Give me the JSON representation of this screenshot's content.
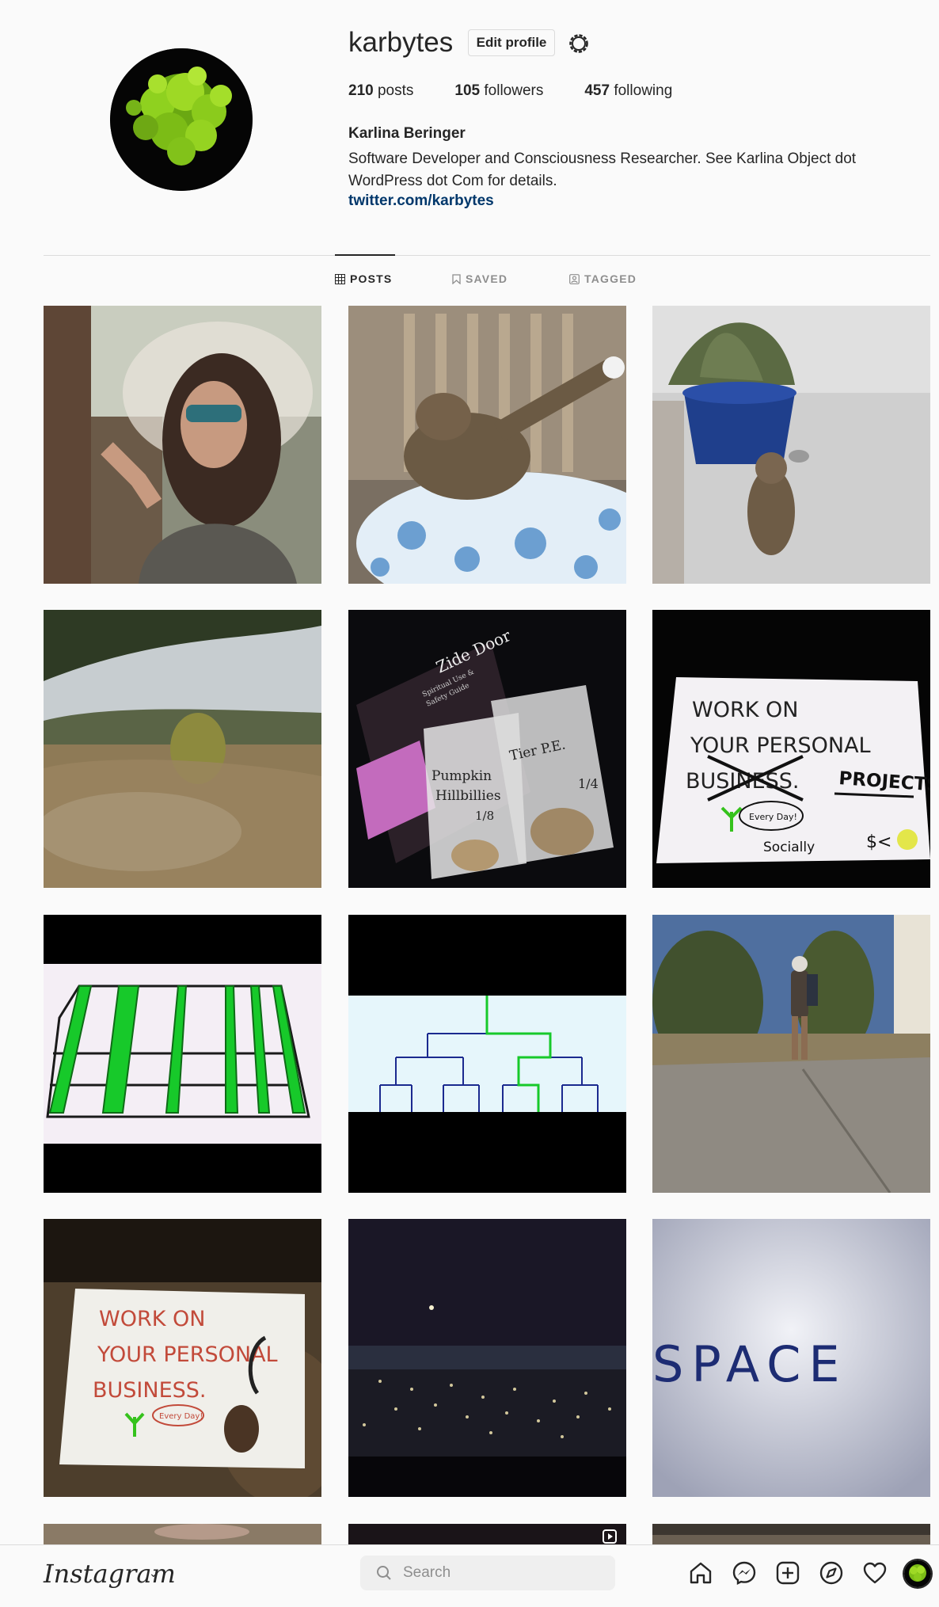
{
  "profile": {
    "username": "karbytes",
    "edit_label": "Edit profile",
    "posts_count": "210",
    "posts_label": " posts",
    "followers_count": "105",
    "followers_label": " followers",
    "following_count": "457",
    "following_label": " following",
    "full_name": "Karlina Beringer",
    "bio": "Software Developer and Consciousness Researcher. See Karlina Object dot WordPress dot Com for details.",
    "link": "twitter.com/karbytes"
  },
  "tabs": [
    {
      "label": "POSTS",
      "active": true
    },
    {
      "label": "SAVED",
      "active": false
    },
    {
      "label": "TAGGED",
      "active": false
    }
  ],
  "grid": {
    "tiles": [
      {
        "icon": "selfie-photo"
      },
      {
        "icon": "cat-on-cushion-photo"
      },
      {
        "icon": "cat-by-planter-photo"
      },
      {
        "icon": "hillside-landscape-photo"
      },
      {
        "icon": "mushroom-bags-photo"
      },
      {
        "icon": "work-on-projects-sign-photo"
      },
      {
        "icon": "green-grid-drawing-photo"
      },
      {
        "icon": "tree-diagram-drawing-photo"
      },
      {
        "icon": "hiker-on-path-photo"
      },
      {
        "icon": "work-on-business-sign-photo"
      },
      {
        "icon": "night-city-lights-photo"
      },
      {
        "icon": "space-word-photo"
      }
    ],
    "sign1_lines": [
      "WORK  ON",
      "YOUR  PERSONAL",
      "BUSINESS.",
      "PROJECTS",
      "Every Day!",
      "Socially",
      "$<"
    ],
    "sign2_lines": [
      "WORK  ON",
      "YOUR  PERSONAL",
      "BUSINESS.",
      "Every Day!"
    ],
    "bags_lines": [
      "Zide Door",
      "Spiritual Use &",
      "Safety Guide",
      "Pumpkin",
      "Hillbillies",
      "1/8",
      "Tier P.E.",
      "1/4"
    ],
    "space_word": "SPACE"
  },
  "bottom_nav": {
    "logo": "Instagram",
    "search_placeholder": "Search",
    "icons": [
      "home-icon",
      "messenger-icon",
      "new-post-icon",
      "explore-icon",
      "activity-heart-icon",
      "profile-avatar"
    ]
  },
  "colors": {
    "link": "#00376b",
    "border": "#dbdbdb",
    "text": "#262626",
    "muted": "#8e8e8e"
  }
}
